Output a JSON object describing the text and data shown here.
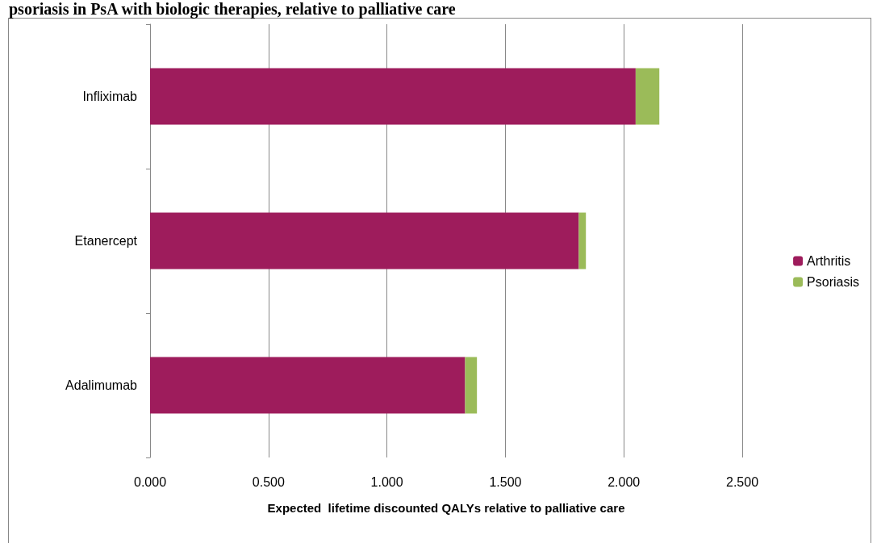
{
  "chart_data": {
    "type": "bar",
    "title": "psoriasis in PsA with biologic therapies, relative to palliative care",
    "xlabel": "Expected  lifetime discounted QALYs relative to palliative care",
    "categories": [
      "Infliximab",
      "Etanercept",
      "Adalimumab"
    ],
    "orientation": "horizontal",
    "stacked": true,
    "series": [
      {
        "name": "Arthritis",
        "color": "#9e1c5c",
        "values": [
          2.05,
          1.81,
          1.33
        ]
      },
      {
        "name": "Psoriasis",
        "color": "#9bbb59",
        "values": [
          0.1,
          0.03,
          0.05
        ]
      }
    ],
    "xlim": [
      0,
      2.5
    ],
    "xticks": [
      {
        "value": 0,
        "label": "0.000"
      },
      {
        "value": 0.5,
        "label": "0.500"
      },
      {
        "value": 1,
        "label": "1.000"
      },
      {
        "value": 1.5,
        "label": "1.500"
      },
      {
        "value": 2,
        "label": "2.000"
      },
      {
        "value": 2.5,
        "label": "2.500"
      }
    ],
    "grid": "x",
    "legend": "right"
  }
}
